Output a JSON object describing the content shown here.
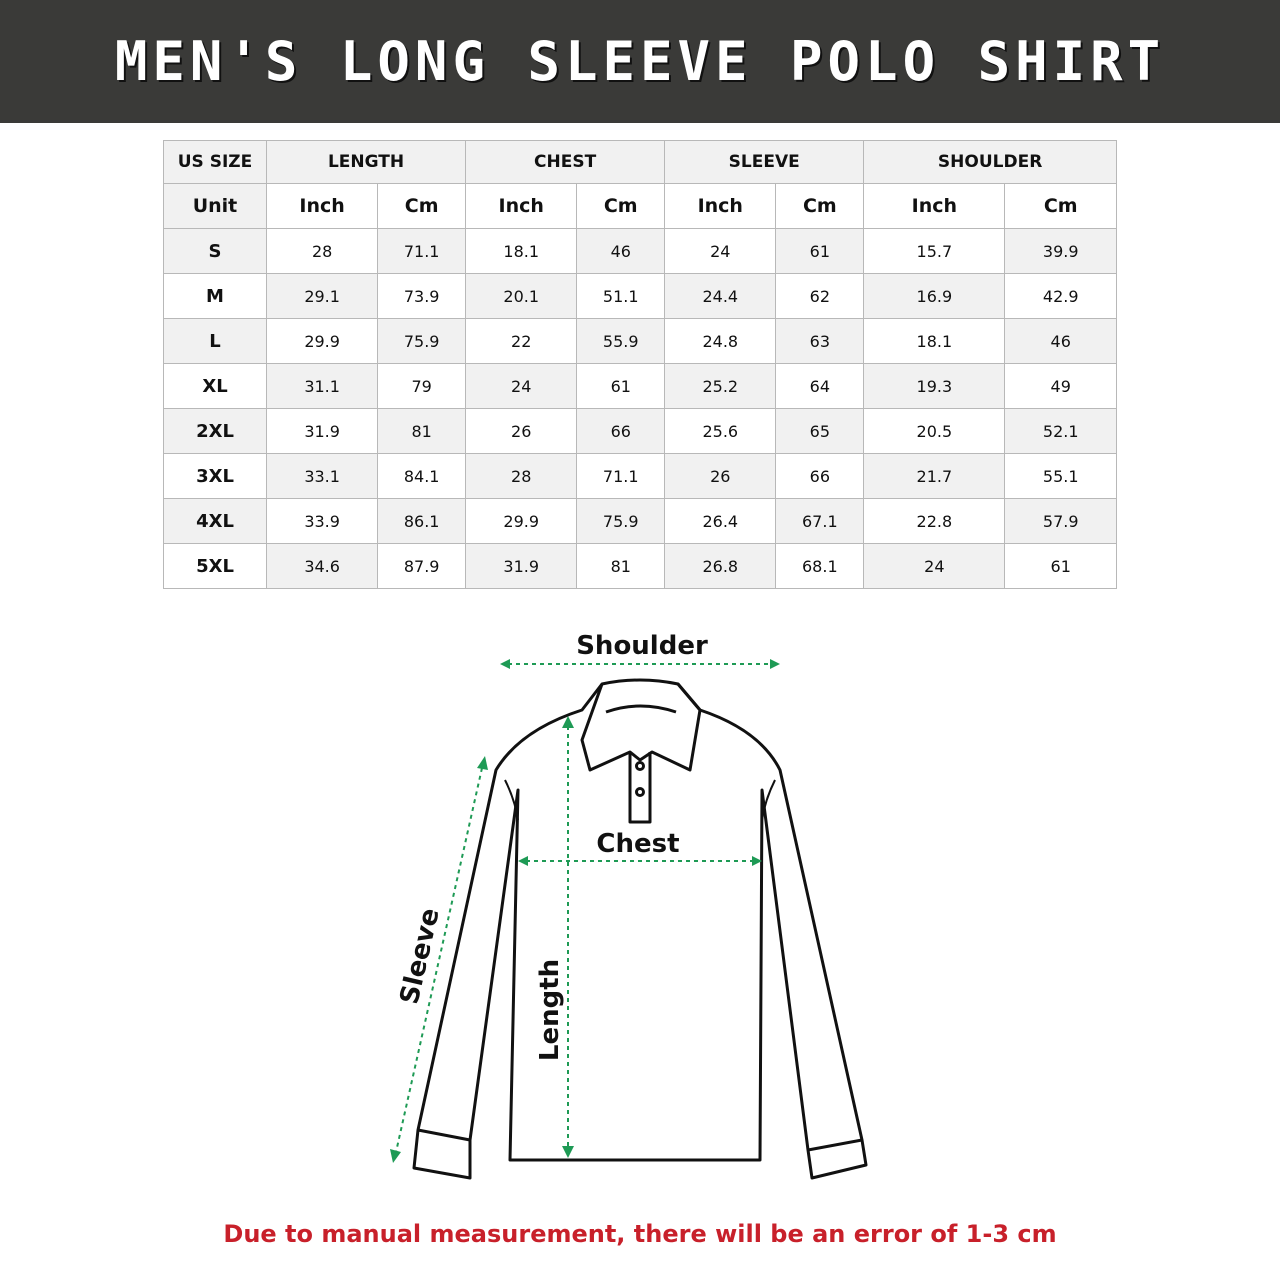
{
  "title": "MEN'S LONG SLEEVE POLO SHIRT",
  "table": {
    "corner": "US SIZE",
    "groups": [
      "LENGTH",
      "CHEST",
      "SLEEVE",
      "SHOULDER"
    ],
    "unit_label": "Unit",
    "units": [
      "Inch",
      "Cm",
      "Inch",
      "Cm",
      "Inch",
      "Cm",
      "Inch",
      "Cm"
    ],
    "rows": [
      {
        "size": "S",
        "values": [
          "28",
          "71.1",
          "18.1",
          "46",
          "24",
          "61",
          "15.7",
          "39.9"
        ]
      },
      {
        "size": "M",
        "values": [
          "29.1",
          "73.9",
          "20.1",
          "51.1",
          "24.4",
          "62",
          "16.9",
          "42.9"
        ]
      },
      {
        "size": "L",
        "values": [
          "29.9",
          "75.9",
          "22",
          "55.9",
          "24.8",
          "63",
          "18.1",
          "46"
        ]
      },
      {
        "size": "XL",
        "values": [
          "31.1",
          "79",
          "24",
          "61",
          "25.2",
          "64",
          "19.3",
          "49"
        ]
      },
      {
        "size": "2XL",
        "values": [
          "31.9",
          "81",
          "26",
          "66",
          "25.6",
          "65",
          "20.5",
          "52.1"
        ]
      },
      {
        "size": "3XL",
        "values": [
          "33.1",
          "84.1",
          "28",
          "71.1",
          "26",
          "66",
          "21.7",
          "55.1"
        ]
      },
      {
        "size": "4XL",
        "values": [
          "33.9",
          "86.1",
          "29.9",
          "75.9",
          "26.4",
          "67.1",
          "22.8",
          "57.9"
        ]
      },
      {
        "size": "5XL",
        "values": [
          "34.6",
          "87.9",
          "31.9",
          "81",
          "26.8",
          "68.1",
          "24",
          "61"
        ]
      }
    ]
  },
  "diagram": {
    "shoulder": "Shoulder",
    "chest": "Chest",
    "sleeve": "Sleeve",
    "length": "Length",
    "measure_color": "#1e9a55"
  },
  "note": "Due to manual measurement, there will be an error of 1-3 cm",
  "colors": {
    "banner": "#3a3a38",
    "note": "#c8202a"
  }
}
